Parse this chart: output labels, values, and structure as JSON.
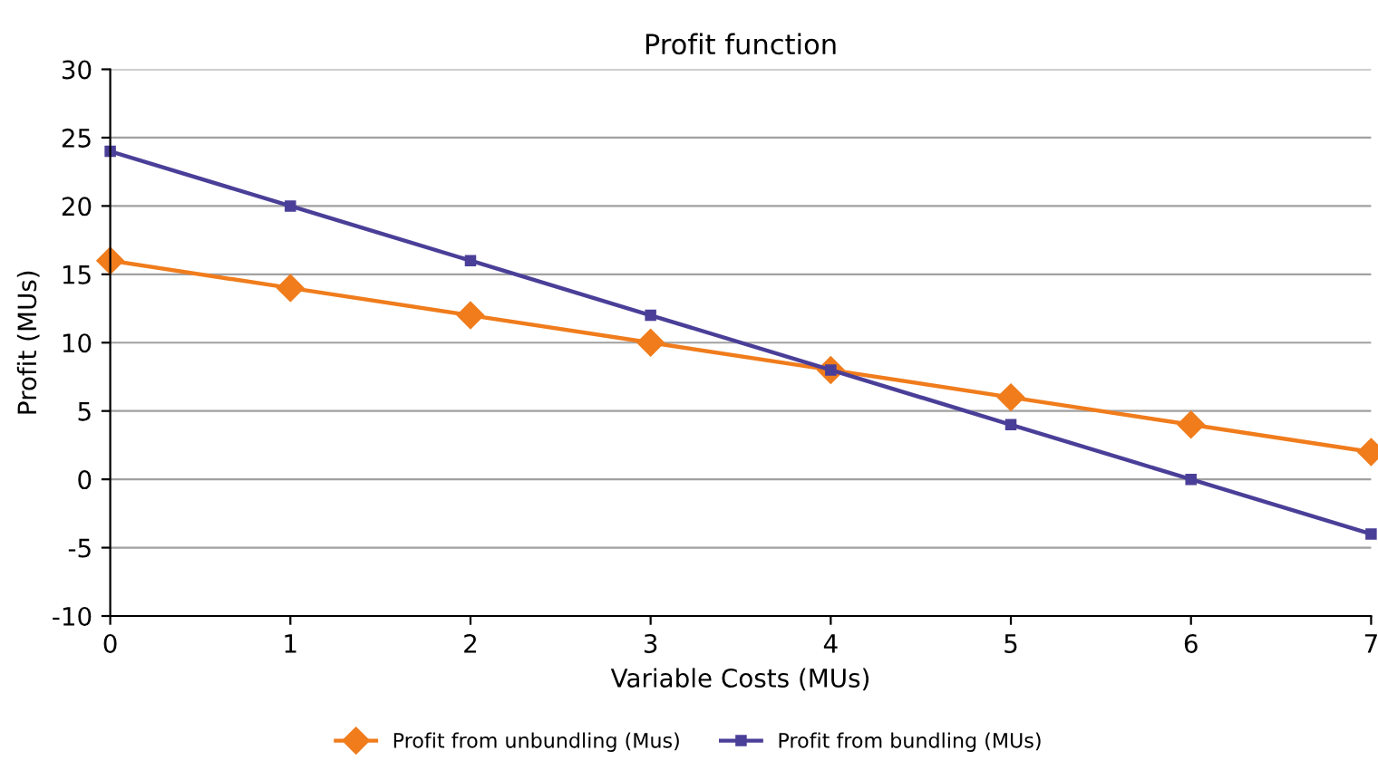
{
  "chart_data": {
    "type": "line",
    "title": "Profit function",
    "xlabel": "Variable Costs (MUs)",
    "ylabel": "Profit (MUs)",
    "x": [
      0,
      1,
      2,
      3,
      4,
      5,
      6,
      7
    ],
    "series": [
      {
        "name": "Profit from unbundling (Mus)",
        "color": "#f07c1c",
        "marker": "diamond",
        "values": [
          16,
          14,
          12,
          10,
          8,
          6,
          4,
          2
        ]
      },
      {
        "name": "Profit from bundling (MUs)",
        "color": "#4a3f98",
        "marker": "square",
        "values": [
          24,
          20,
          16,
          12,
          8,
          4,
          0,
          -4
        ]
      }
    ],
    "xlim": [
      0,
      7
    ],
    "xticks": [
      0,
      1,
      2,
      3,
      4,
      5,
      6,
      7
    ],
    "ylim": [
      -10,
      30
    ],
    "yticks": [
      -10,
      -5,
      0,
      5,
      10,
      15,
      20,
      25,
      30
    ],
    "grid": "y",
    "legend": "bottom",
    "line_style": "solid"
  }
}
